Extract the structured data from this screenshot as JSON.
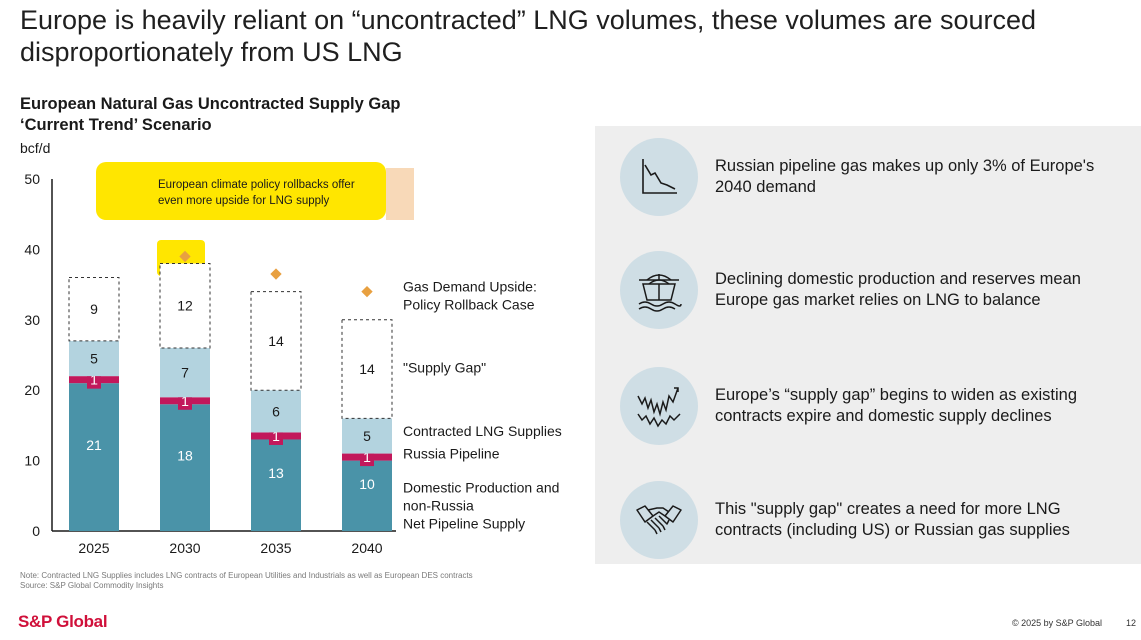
{
  "headline": "Europe is heavily reliant on “uncontracted” LNG volumes, these volumes are sourced disproportionately from US LNG",
  "chart_title_line1": "European Natural Gas Uncontracted Supply Gap",
  "chart_title_line2": "‘Current Trend’ Scenario",
  "unit": "bcf/d",
  "callout": {
    "line1": "European climate policy rollbacks offer",
    "line2": "even more upside for LNG supply"
  },
  "chart_data": {
    "type": "bar",
    "stacked": true,
    "categories": [
      "2025",
      "2030",
      "2035",
      "2040"
    ],
    "ylim": [
      0,
      50
    ],
    "yticks": [
      0,
      10,
      20,
      30,
      40,
      50
    ],
    "ylabel": "bcf/d",
    "series": [
      {
        "name": "Domestic Production and non-Russia Net Pipeline Supply",
        "values": [
          21,
          18,
          13,
          10
        ],
        "color": "#4a93a8"
      },
      {
        "name": "Russia Pipeline",
        "values": [
          1,
          1,
          1,
          1
        ],
        "color": "#c2185b"
      },
      {
        "name": "Contracted LNG Supplies",
        "values": [
          5,
          7,
          6,
          5
        ],
        "color": "#b3d3df"
      },
      {
        "name": "\"Supply Gap\"",
        "values": [
          9,
          12,
          14,
          14
        ],
        "color": "#ffffff"
      }
    ],
    "upside_markers": {
      "name": "Gas Demand Upside: Policy Rollback Case",
      "values": [
        null,
        39,
        36.5,
        34
      ],
      "color": "#e8a040"
    },
    "legend_labels": [
      {
        "key": "upside",
        "lines": [
          "Gas Demand Upside:",
          "Policy Rollback Case"
        ],
        "y": 34
      },
      {
        "key": "gap",
        "lines": [
          "\"Supply Gap\""
        ],
        "y": 22.5
      },
      {
        "key": "lng",
        "lines": [
          "Contracted LNG Supplies"
        ],
        "y": 13.5
      },
      {
        "key": "russia",
        "lines": [
          "Russia Pipeline"
        ],
        "y": 10.3
      },
      {
        "key": "domestic",
        "lines": [
          "Domestic Production and",
          "non-Russia",
          "Net Pipeline Supply"
        ],
        "y": 5.5
      }
    ]
  },
  "note": "Note: Contracted LNG Supplies includes LNG contracts of European Utilities and Industrials as well as European DES contracts",
  "source": "Source: S&P Global Commodity Insights",
  "panel_items": [
    {
      "icon": "declining-chart-icon",
      "text": "Russian pipeline gas makes up only 3% of Europe's 2040 demand"
    },
    {
      "icon": "lng-tanker-ship-icon",
      "text": "Declining domestic production and reserves mean Europe gas market relies on LNG to balance"
    },
    {
      "icon": "volatile-line-chart-icon",
      "text": "Europe’s “supply gap” begins to widen as existing contracts expire and domestic supply declines"
    },
    {
      "icon": "handshake-icon",
      "text": "This \"supply gap\" creates a need for more LNG contracts (including US) or Russian gas supplies"
    }
  ],
  "footer": {
    "logo": "S&P Global",
    "copyright": "© 2025 by S&P Global",
    "page": "12"
  },
  "colors": {
    "accent": "#d0103a",
    "highlight": "#ffe600",
    "panel": "#eeeeee"
  }
}
